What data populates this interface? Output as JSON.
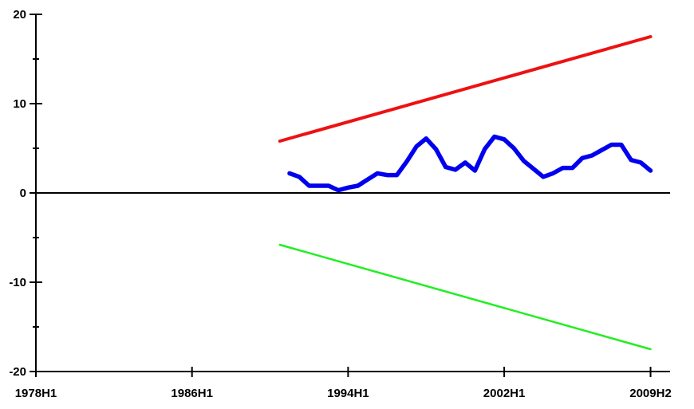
{
  "chart_data": {
    "type": "line",
    "title": "",
    "xlabel": "",
    "ylabel": "",
    "xlim": [
      1978.0,
      2010.5
    ],
    "ylim": [
      -20,
      20
    ],
    "x_ticks": [
      {
        "x": 1978.0,
        "label": "1978H1"
      },
      {
        "x": 1986.0,
        "label": "1986H1"
      },
      {
        "x": 1994.0,
        "label": "1994H1"
      },
      {
        "x": 2002.0,
        "label": "2002H1"
      },
      {
        "x": 2009.5,
        "label": "2009H2"
      }
    ],
    "y_ticks": [
      {
        "y": 20,
        "label": "20"
      },
      {
        "y": 10,
        "label": "10"
      },
      {
        "y": 0,
        "label": "0"
      },
      {
        "y": -10,
        "label": "-10"
      },
      {
        "y": -20,
        "label": "-20"
      }
    ],
    "y_minor_ticks": [
      15,
      5,
      -5,
      -15
    ],
    "grid": false,
    "zero_line": true,
    "series": [
      {
        "color": "#ee1111",
        "x": [
          1990.5,
          2009.5
        ],
        "values": [
          5.8,
          17.5
        ]
      },
      {
        "color": "#22ee22",
        "x": [
          1990.5,
          2009.5
        ],
        "values": [
          -5.8,
          -17.5
        ]
      },
      {
        "color": "#0000ee",
        "x": [
          1991.0,
          1991.5,
          1992.0,
          1992.5,
          1993.0,
          1993.5,
          1994.0,
          1994.5,
          1995.0,
          1995.5,
          1996.0,
          1996.5,
          1997.0,
          1997.5,
          1998.0,
          1998.5,
          1999.0,
          1999.5,
          2000.0,
          2000.5,
          2001.0,
          2001.5,
          2002.0,
          2002.5,
          2003.0,
          2003.5,
          2004.0,
          2004.5,
          2005.0,
          2005.5,
          2006.0,
          2006.5,
          2007.0,
          2007.5,
          2008.0,
          2008.5,
          2009.0,
          2009.5
        ],
        "values": [
          2.2,
          1.8,
          0.8,
          0.8,
          0.8,
          0.3,
          0.6,
          0.8,
          1.5,
          2.2,
          2.0,
          2.0,
          3.5,
          5.2,
          6.1,
          4.9,
          2.9,
          2.6,
          3.4,
          2.5,
          4.9,
          6.3,
          6.0,
          5.0,
          3.6,
          2.7,
          1.8,
          2.2,
          2.8,
          2.8,
          3.9,
          4.2,
          4.8,
          5.4,
          5.4,
          3.7,
          3.4,
          2.5
        ]
      }
    ]
  }
}
